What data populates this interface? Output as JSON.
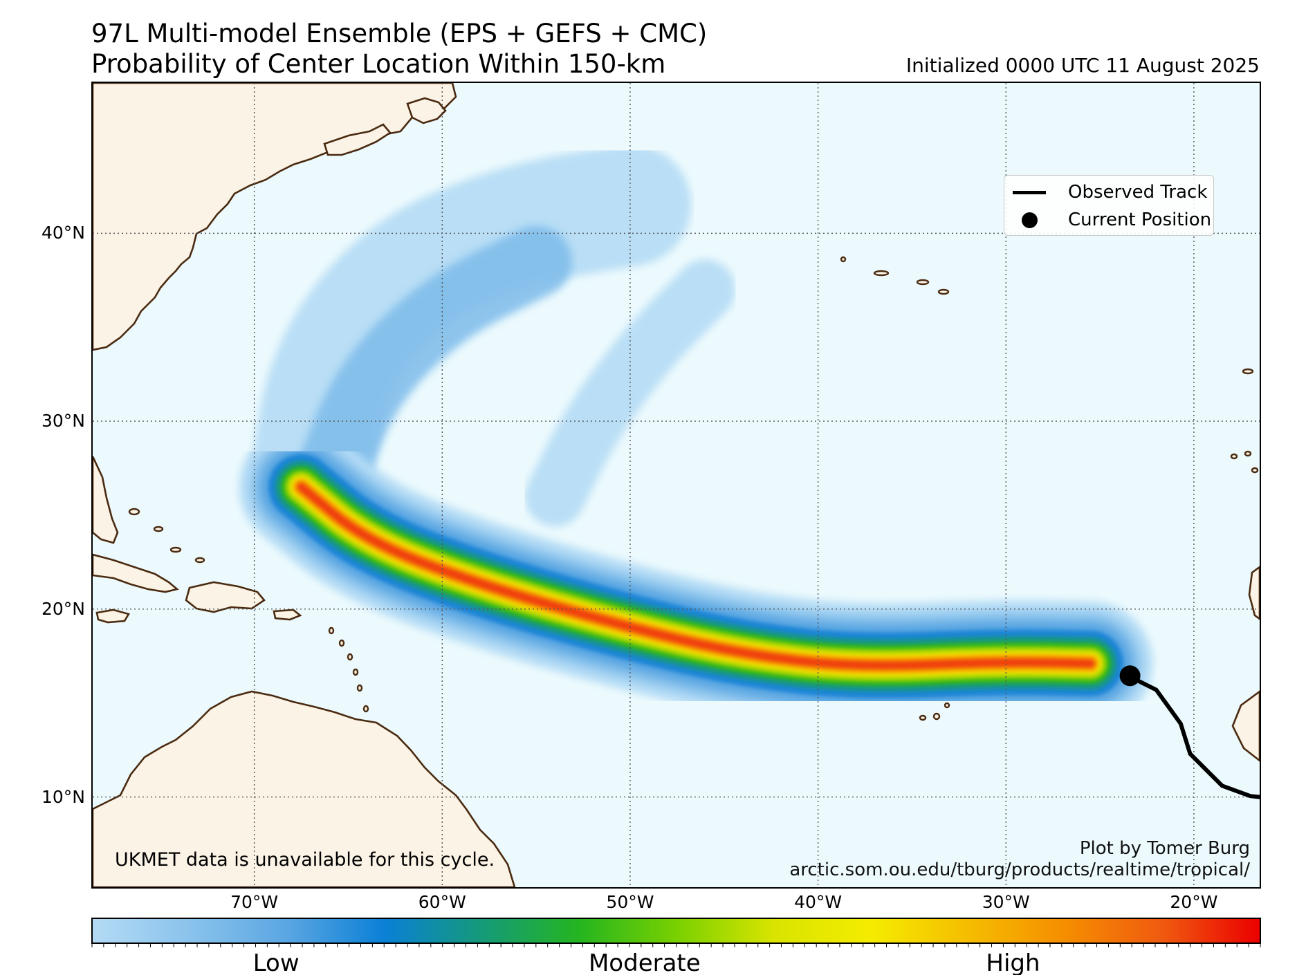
{
  "title": {
    "line1": "97L Multi-model Ensemble (EPS + GEFS + CMC)",
    "line2": "Probability of Center Location Within 150-km",
    "initialized": "Initialized 0000 UTC 11 August 2025"
  },
  "map": {
    "extent": {
      "lon_min": -78.6,
      "lon_max": -16.5,
      "lat_min": 5.2,
      "lat_max": 48.0
    },
    "lat_labels": [
      {
        "lat": 40,
        "text": "40°N"
      },
      {
        "lat": 30,
        "text": "30°N"
      },
      {
        "lat": 20,
        "text": "20°N"
      },
      {
        "lat": 10,
        "text": "10°N"
      }
    ],
    "lon_labels": [
      {
        "lon": -70,
        "text": "70°W"
      },
      {
        "lon": -60,
        "text": "60°W"
      },
      {
        "lon": -50,
        "text": "50°W"
      },
      {
        "lon": -40,
        "text": "40°W"
      },
      {
        "lon": -30,
        "text": "30°W"
      },
      {
        "lon": -20,
        "text": "20°W"
      }
    ],
    "ocean_color": "#ecfafd",
    "land_color": "#fbf3e6",
    "coast_color": "#4a2a10",
    "observed_track": [
      {
        "lon": -16.5,
        "lat": 10.0
      },
      {
        "lon": -17.0,
        "lat": 10.05
      },
      {
        "lon": -18.5,
        "lat": 10.6
      },
      {
        "lon": -20.2,
        "lat": 12.3
      },
      {
        "lon": -20.7,
        "lat": 13.9
      },
      {
        "lon": -22.0,
        "lat": 15.7
      },
      {
        "lon": -23.4,
        "lat": 16.4
      }
    ],
    "current_position": {
      "lon": -23.4,
      "lat": 16.45
    },
    "probability_bands": {
      "centerline": [
        {
          "lon": -67.5,
          "lat": 26.5
        },
        {
          "lon": -64.0,
          "lat": 23.6
        },
        {
          "lon": -58.0,
          "lat": 21.3
        },
        {
          "lon": -50.0,
          "lat": 19.0
        },
        {
          "lon": -44.0,
          "lat": 17.6
        },
        {
          "lon": -38.0,
          "lat": 16.9
        },
        {
          "lon": -30.0,
          "lat": 17.2
        },
        {
          "lon": -25.5,
          "lat": 17.1
        }
      ],
      "levels": [
        {
          "half_width_deg": 3.3,
          "color": "#b4dbf5"
        },
        {
          "half_width_deg": 2.7,
          "color": "#8ac3ec"
        },
        {
          "half_width_deg": 2.2,
          "color": "#5aa6e2"
        },
        {
          "half_width_deg": 1.75,
          "color": "#1a85d6"
        },
        {
          "half_width_deg": 1.4,
          "color": "#12958a"
        },
        {
          "half_width_deg": 1.1,
          "color": "#2eb51c"
        },
        {
          "half_width_deg": 0.85,
          "color": "#a2d400"
        },
        {
          "half_width_deg": 0.62,
          "color": "#f0e000"
        },
        {
          "half_width_deg": 0.42,
          "color": "#f5a000"
        },
        {
          "half_width_deg": 0.22,
          "color": "#f04010"
        }
      ]
    }
  },
  "legend": {
    "observed_track": "Observed Track",
    "current_position": "Current Position"
  },
  "credits": {
    "author": "Plot by Tomer Burg",
    "url": "arctic.som.ou.edu/tburg/products/realtime/tropical/",
    "ukmet_note": "UKMET data is unavailable for this cycle."
  },
  "colorbar": {
    "colors": [
      "#b4dbf5",
      "#8ac3ec",
      "#5aa6e2",
      "#0a80d6",
      "#159a7a",
      "#25b520",
      "#79d000",
      "#d8e400",
      "#f5ec00",
      "#f5bd00",
      "#f58e00",
      "#f05a10",
      "#eb0000"
    ],
    "labels": [
      {
        "position": 0.158,
        "text": "Low"
      },
      {
        "position": 0.473,
        "text": "Moderate"
      },
      {
        "position": 0.788,
        "text": "High"
      }
    ]
  }
}
